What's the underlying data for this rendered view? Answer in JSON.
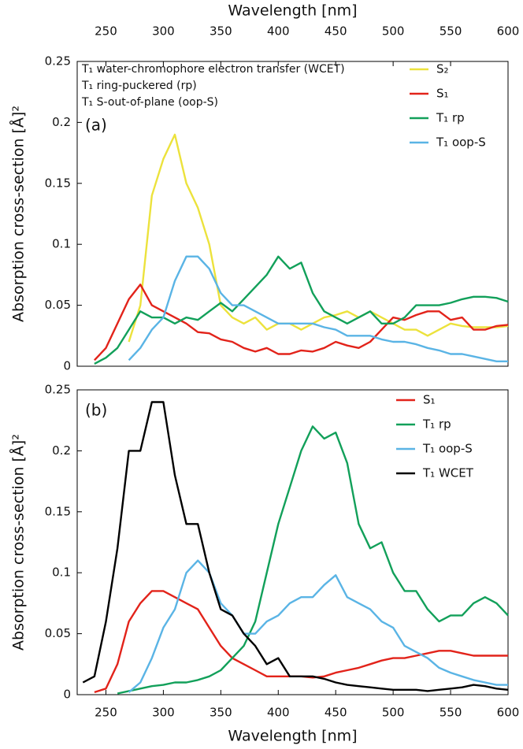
{
  "chart_data": [
    {
      "type": "line",
      "label": "(a)",
      "xlabel": "Wavelength [nm]",
      "ylabel": "Absorption cross-section [Å]²",
      "xaxis_position": "top",
      "annotations": [
        "T₁ water-chromophore electron transfer (WCET)",
        "T₁ ring-puckered (rp)",
        "T₁ S-out-of-plane (oop-S)"
      ],
      "xlim": [
        225,
        600
      ],
      "xticks": [
        250,
        300,
        350,
        400,
        450,
        500,
        550,
        600
      ],
      "ylim": [
        0,
        0.25
      ],
      "yticks": [
        0,
        0.05,
        0.1,
        0.15,
        0.2,
        0.25
      ],
      "x": [
        230,
        240,
        250,
        260,
        270,
        280,
        290,
        300,
        310,
        320,
        330,
        340,
        350,
        360,
        370,
        380,
        390,
        400,
        410,
        420,
        430,
        440,
        450,
        460,
        470,
        480,
        490,
        500,
        510,
        520,
        530,
        540,
        550,
        560,
        570,
        580,
        590,
        600
      ],
      "series": [
        {
          "name": "S₂",
          "color": "#ece23c",
          "values": [
            null,
            null,
            null,
            null,
            0.02,
            0.05,
            0.14,
            0.17,
            0.19,
            0.15,
            0.13,
            0.1,
            0.05,
            0.04,
            0.035,
            0.04,
            0.03,
            0.035,
            0.035,
            0.03,
            0.035,
            0.04,
            0.042,
            0.045,
            0.04,
            0.045,
            0.04,
            0.035,
            0.03,
            0.03,
            0.025,
            0.03,
            0.035,
            0.033,
            0.032,
            0.032,
            0.032,
            0.033
          ]
        },
        {
          "name": "S₁",
          "color": "#e2231a",
          "values": [
            null,
            0.005,
            0.015,
            0.035,
            0.055,
            0.067,
            0.05,
            0.045,
            0.04,
            0.035,
            0.028,
            0.027,
            0.022,
            0.02,
            0.015,
            0.012,
            0.015,
            0.01,
            0.01,
            0.013,
            0.012,
            0.015,
            0.02,
            0.017,
            0.015,
            0.02,
            0.03,
            0.04,
            0.038,
            0.042,
            0.045,
            0.045,
            0.038,
            0.04,
            0.03,
            0.03,
            0.033,
            0.034
          ]
        },
        {
          "name": "T₁ rp",
          "color": "#12a05a",
          "values": [
            null,
            0.002,
            0.007,
            0.015,
            0.03,
            0.045,
            0.04,
            0.04,
            0.035,
            0.04,
            0.038,
            0.045,
            0.052,
            0.045,
            0.055,
            0.065,
            0.075,
            0.09,
            0.08,
            0.085,
            0.06,
            0.045,
            0.04,
            0.035,
            0.04,
            0.045,
            0.035,
            0.035,
            0.04,
            0.05,
            0.05,
            0.05,
            0.052,
            0.055,
            0.057,
            0.057,
            0.056,
            0.053
          ]
        },
        {
          "name": "T₁ oop-S",
          "color": "#5ab4e5",
          "values": [
            null,
            null,
            null,
            null,
            0.005,
            0.015,
            0.03,
            0.04,
            0.07,
            0.09,
            0.09,
            0.08,
            0.06,
            0.05,
            0.05,
            0.045,
            0.04,
            0.035,
            0.035,
            0.035,
            0.035,
            0.032,
            0.03,
            0.025,
            0.025,
            0.025,
            0.022,
            0.02,
            0.02,
            0.018,
            0.015,
            0.013,
            0.01,
            0.01,
            0.008,
            0.006,
            0.004,
            0.004
          ]
        }
      ]
    },
    {
      "type": "line",
      "label": "(b)",
      "xlabel": "Wavelength [nm]",
      "ylabel": "Absorption cross-section [Å]²",
      "xaxis_position": "bottom",
      "xlim": [
        225,
        600
      ],
      "xticks": [
        250,
        300,
        350,
        400,
        450,
        500,
        550,
        600
      ],
      "ylim": [
        0,
        0.25
      ],
      "yticks": [
        0,
        0.05,
        0.1,
        0.15,
        0.2,
        0.25
      ],
      "x": [
        230,
        240,
        250,
        260,
        270,
        280,
        290,
        300,
        310,
        320,
        330,
        340,
        350,
        360,
        370,
        380,
        390,
        400,
        410,
        420,
        430,
        440,
        450,
        460,
        470,
        480,
        490,
        500,
        510,
        520,
        530,
        540,
        550,
        560,
        570,
        580,
        590,
        600
      ],
      "series": [
        {
          "name": "S₁",
          "color": "#e2231a",
          "values": [
            null,
            0.002,
            0.005,
            0.025,
            0.06,
            0.075,
            0.085,
            0.085,
            0.08,
            0.075,
            0.07,
            0.055,
            0.04,
            0.03,
            0.025,
            0.02,
            0.015,
            0.015,
            0.015,
            0.015,
            0.014,
            0.015,
            0.018,
            0.02,
            0.022,
            0.025,
            0.028,
            0.03,
            0.03,
            0.032,
            0.034,
            0.036,
            0.036,
            0.034,
            0.032,
            0.032,
            0.032,
            0.032
          ]
        },
        {
          "name": "T₁ rp",
          "color": "#12a05a",
          "values": [
            null,
            null,
            null,
            0.001,
            0.003,
            0.005,
            0.007,
            0.008,
            0.01,
            0.01,
            0.012,
            0.015,
            0.02,
            0.03,
            0.04,
            0.06,
            0.1,
            0.14,
            0.17,
            0.2,
            0.22,
            0.21,
            0.215,
            0.19,
            0.14,
            0.12,
            0.125,
            0.1,
            0.085,
            0.085,
            0.07,
            0.06,
            0.065,
            0.065,
            0.075,
            0.08,
            0.075,
            0.065
          ]
        },
        {
          "name": "T₁ oop-S",
          "color": "#5ab4e5",
          "values": [
            null,
            null,
            null,
            null,
            0.002,
            0.01,
            0.03,
            0.055,
            0.07,
            0.1,
            0.11,
            0.1,
            0.075,
            0.065,
            0.05,
            0.05,
            0.06,
            0.065,
            0.075,
            0.08,
            0.08,
            0.09,
            0.098,
            0.08,
            0.075,
            0.07,
            0.06,
            0.055,
            0.04,
            0.035,
            0.03,
            0.022,
            0.018,
            0.015,
            0.012,
            0.01,
            0.008,
            0.008
          ]
        },
        {
          "name": "T₁ WCET",
          "color": "#000000",
          "values": [
            0.01,
            0.015,
            0.06,
            0.12,
            0.2,
            0.2,
            0.24,
            0.24,
            0.18,
            0.14,
            0.14,
            0.1,
            0.07,
            0.065,
            0.05,
            0.04,
            0.025,
            0.03,
            0.015,
            0.015,
            0.015,
            0.013,
            0.01,
            0.008,
            0.007,
            0.006,
            0.005,
            0.004,
            0.004,
            0.004,
            0.003,
            0.004,
            0.005,
            0.006,
            0.008,
            0.007,
            0.005,
            0.004
          ]
        }
      ]
    }
  ]
}
